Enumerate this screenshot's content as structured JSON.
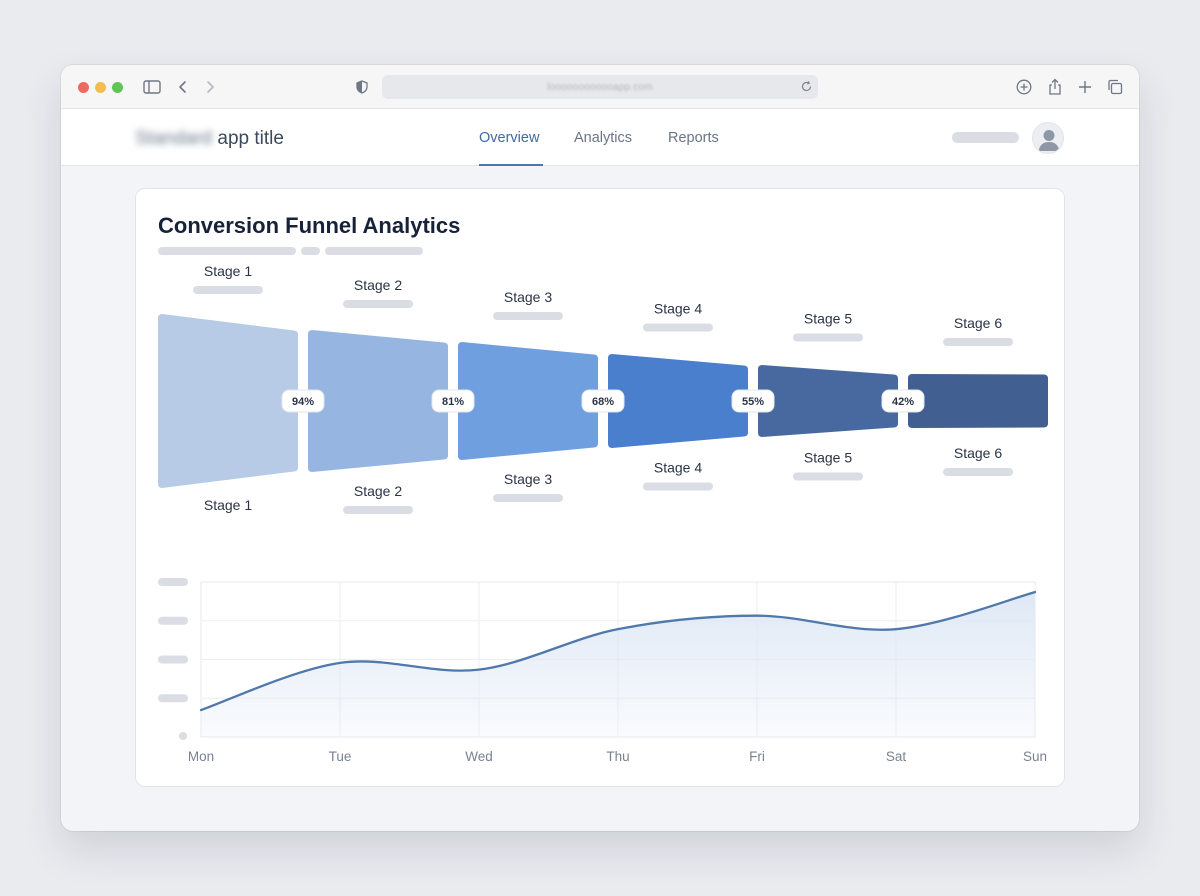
{
  "browser": {
    "url": "loooooooooooapp.com",
    "icons": [
      "sidebar-icon",
      "back-icon",
      "forward-icon",
      "shield-icon",
      "reload-icon",
      "download-icon",
      "share-icon",
      "new-tab-icon",
      "tabs-overview-icon"
    ],
    "traffic_lights": {
      "close": "#ee6a5f",
      "minimize": "#f5bd4f",
      "maximize": "#61c554"
    }
  },
  "header": {
    "title_blurred": "Standard",
    "title": "app title",
    "tabs": [
      {
        "label": "Overview",
        "active": true
      },
      {
        "label": "Analytics",
        "active": false
      },
      {
        "label": "Reports",
        "active": false
      }
    ]
  },
  "card": {
    "title": "Conversion Funnel Analytics"
  },
  "chart_data": [
    {
      "type": "funnel",
      "stages": [
        "Stage 1",
        "Stage 2",
        "Stage 3",
        "Stage 4",
        "Stage 5",
        "Stage 6"
      ],
      "conversion_rates": [
        "94%",
        "81%",
        "68%",
        "55%",
        "42%"
      ],
      "colors": [
        "#b7cbe6",
        "#96b6e1",
        "#6f9fde",
        "#4a7fcd",
        "#47699f",
        "#415f91"
      ]
    },
    {
      "type": "area",
      "categories": [
        "Mon",
        "Tue",
        "Wed",
        "Thu",
        "Fri",
        "Sat",
        "Sun"
      ],
      "values": [
        0.2,
        1.6,
        1.4,
        2.6,
        3.0,
        2.6,
        3.7
      ],
      "ylim": [
        -0.6,
        4.0
      ],
      "grid": true,
      "line_color": "#4f78ab",
      "fill_color": "#dde7f5"
    }
  ]
}
